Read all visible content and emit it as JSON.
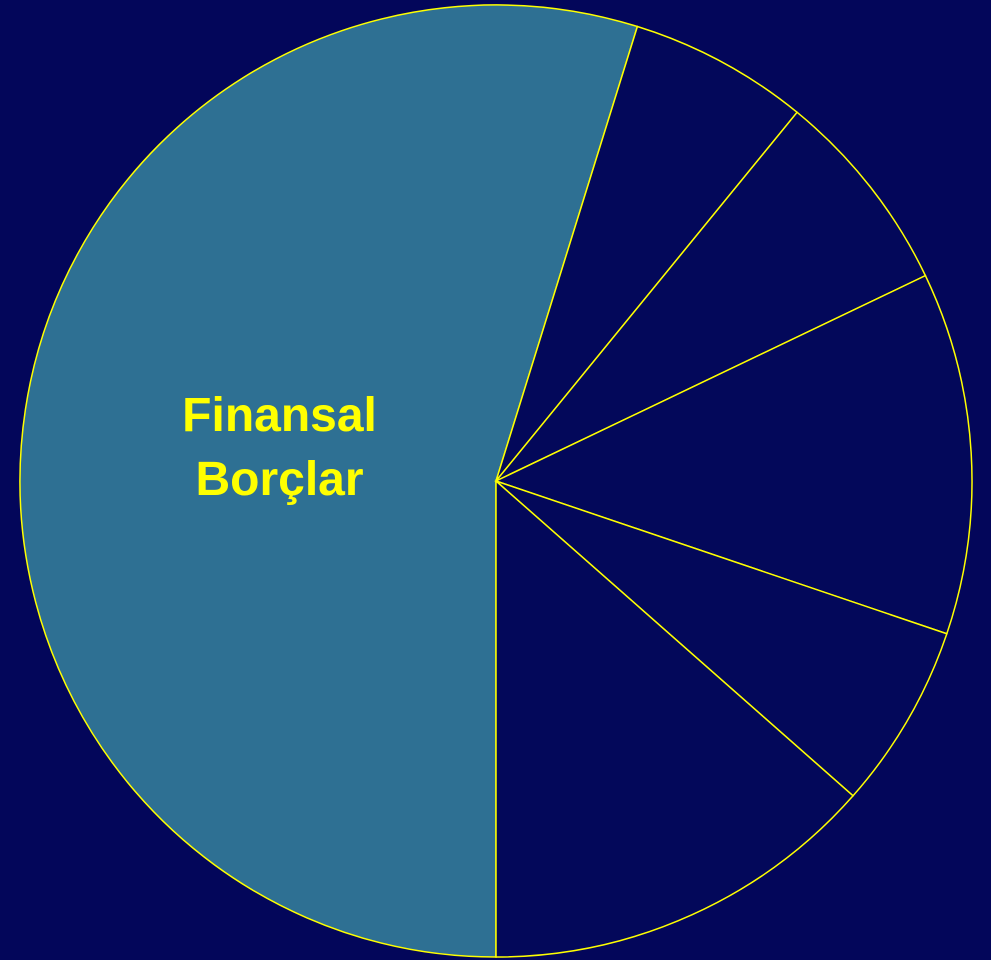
{
  "chart_data": {
    "type": "pie",
    "categories": [
      "Finansal Borçlar",
      null,
      null,
      null,
      null,
      null
    ],
    "values": [
      54.8,
      6.1,
      7.0,
      12.3,
      6.3,
      13.5
    ],
    "colors": [
      "#2e7093",
      "#03085a",
      "#03085a",
      "#03085a",
      "#03085a",
      "#03085a"
    ],
    "edge_color": "#ffff00",
    "startangle": 180
  }
}
